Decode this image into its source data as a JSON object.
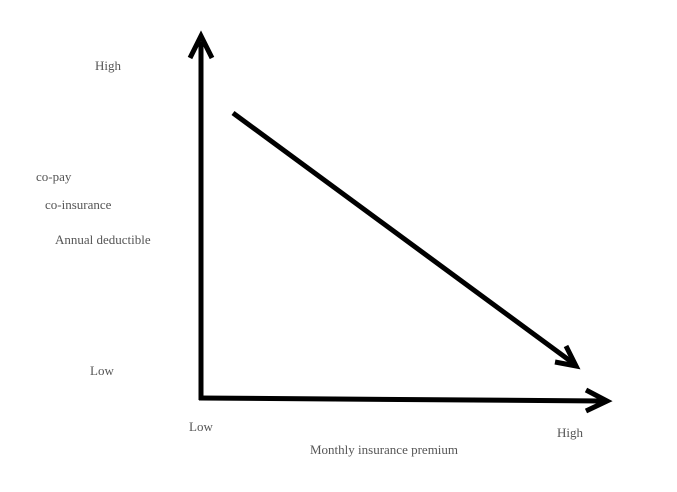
{
  "y_axis": {
    "high": "High",
    "labels": [
      "co-pay",
      "co-insurance",
      "Annual deductible"
    ],
    "low": "Low"
  },
  "x_axis": {
    "low": "Low",
    "high": "High",
    "title": "Monthly insurance premium"
  }
}
